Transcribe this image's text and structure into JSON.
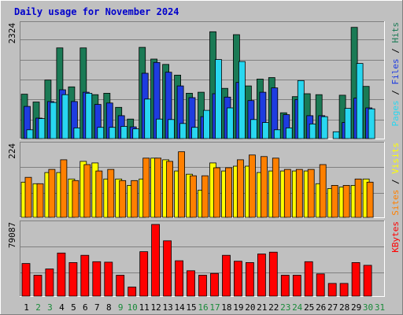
{
  "title": "Daily usage for November 2024",
  "chart_data": [
    {
      "type": "bar",
      "panel": "hits-files-pages",
      "ymax_label": "2324",
      "ylim": [
        0,
        2324
      ],
      "side_label": {
        "parts": [
          "Pages",
          "Files",
          "Hits"
        ],
        "sep": " / "
      },
      "categories": [
        "1",
        "2",
        "3",
        "4",
        "5",
        "6",
        "7",
        "8",
        "9",
        "10",
        "11",
        "12",
        "13",
        "14",
        "15",
        "16",
        "17",
        "18",
        "19",
        "20",
        "21",
        "22",
        "23",
        "24",
        "25",
        "26",
        "27",
        "28",
        "29",
        "30",
        "31"
      ],
      "weekend_days": [
        2,
        3,
        9,
        10,
        16,
        17,
        23,
        24,
        30,
        31
      ],
      "series": [
        {
          "name": "Hits",
          "color": "#1a7a55",
          "values": [
            910,
            750,
            1200,
            1860,
            1060,
            1860,
            900,
            930,
            640,
            400,
            1870,
            1630,
            1520,
            1300,
            930,
            950,
            2190,
            1030,
            2130,
            1080,
            1220,
            1250,
            530,
            860,
            920,
            900,
            0,
            890,
            2280,
            1070,
            0
          ]
        },
        {
          "name": "Files",
          "color": "#1e3ce0",
          "values": [
            660,
            420,
            760,
            1000,
            760,
            950,
            700,
            730,
            470,
            240,
            1340,
            1560,
            1360,
            1080,
            840,
            450,
            920,
            850,
            1150,
            780,
            950,
            1040,
            490,
            800,
            470,
            470,
            0,
            330,
            830,
            630,
            0
          ]
        },
        {
          "name": "Pages",
          "color": "#28d7f0",
          "values": [
            180,
            410,
            740,
            900,
            220,
            930,
            230,
            230,
            250,
            200,
            810,
            400,
            390,
            310,
            230,
            580,
            1620,
            630,
            1580,
            390,
            330,
            180,
            220,
            1190,
            300,
            450,
            140,
            620,
            1540,
            610,
            0
          ]
        }
      ]
    },
    {
      "type": "bar",
      "panel": "visits-sites",
      "ymax_label": "224",
      "ylim": [
        0,
        224
      ],
      "side_label": {
        "parts": [
          "Sites",
          "Visits"
        ],
        "sep": " / "
      },
      "series": [
        {
          "name": "Visits",
          "color": "#ffff00",
          "values": [
            110,
            105,
            140,
            140,
            120,
            175,
            170,
            120,
            120,
            100,
            120,
            185,
            180,
            145,
            135,
            85,
            170,
            145,
            160,
            160,
            140,
            145,
            145,
            145,
            145,
            105,
            90,
            95,
            100,
            120,
            0
          ]
        },
        {
          "name": "Sites",
          "color": "#ff8000",
          "values": [
            125,
            105,
            150,
            180,
            115,
            165,
            145,
            150,
            115,
            115,
            185,
            185,
            175,
            205,
            130,
            130,
            155,
            155,
            180,
            195,
            190,
            185,
            150,
            150,
            150,
            165,
            100,
            100,
            120,
            110,
            0
          ]
        }
      ]
    },
    {
      "type": "bar",
      "panel": "kbytes",
      "ymax_label": "79087",
      "ylim": [
        0,
        79087
      ],
      "side_label": {
        "parts": [
          "KBytes"
        ],
        "sep": ""
      },
      "series": [
        {
          "name": "KBytes",
          "color": "#ff0000",
          "values": [
            36000,
            23000,
            30000,
            47500,
            37000,
            45000,
            38000,
            37500,
            23000,
            10000,
            49000,
            79087,
            61000,
            39000,
            28000,
            23000,
            25000,
            45000,
            38500,
            37000,
            46500,
            48500,
            23000,
            23000,
            38000,
            24500,
            14000,
            14000,
            37000,
            34000,
            0
          ]
        }
      ]
    }
  ]
}
